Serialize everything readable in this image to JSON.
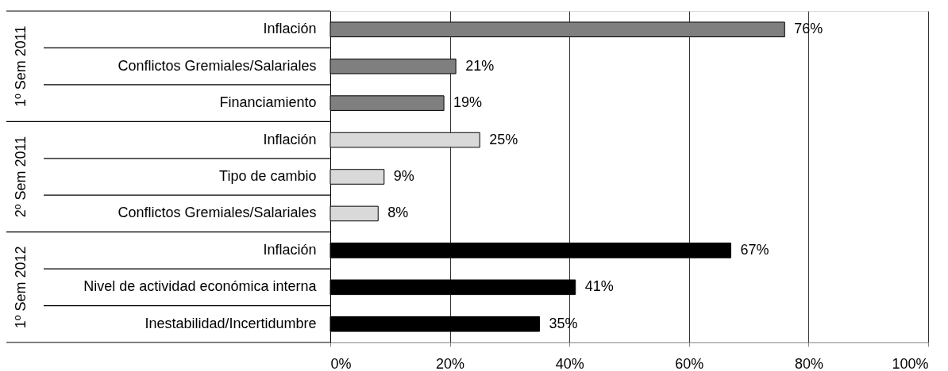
{
  "chart_data": {
    "type": "bar",
    "orientation": "horizontal",
    "categories": [
      "Inflación",
      "Conflictos Gremiales/Salariales",
      "Financiamiento",
      "Inflación",
      "Tipo de cambio",
      "Conflictos Gremiales/Salariales",
      "Inflación",
      "Nivel de actividad económica interna",
      "Inestabilidad/Incertidumbre"
    ],
    "series": [
      {
        "color": "#7f7f7f",
        "values": [
          76,
          21,
          19,
          null,
          null,
          null,
          null,
          null,
          null
        ],
        "value_labels": [
          "76%",
          "21%",
          "19%",
          null,
          null,
          null,
          null,
          null,
          null
        ]
      },
      {
        "color": "#d9d9d9",
        "values": [
          null,
          null,
          null,
          25,
          9,
          8,
          null,
          null,
          null
        ],
        "value_labels": [
          null,
          null,
          null,
          "25%",
          "9%",
          "8%",
          null,
          null,
          null
        ]
      },
      {
        "color": "#000000",
        "values": [
          null,
          null,
          null,
          null,
          null,
          null,
          67,
          41,
          35
        ],
        "value_labels": [
          null,
          null,
          null,
          null,
          null,
          null,
          "67%",
          "41%",
          "35%"
        ]
      }
    ],
    "annotations": [
      "1º Sem 2011",
      "2º Sem 2011",
      "1º Sem 2012"
    ],
    "xlim": [
      0,
      100
    ],
    "xticks": [
      {
        "value": 0,
        "label": "0%"
      },
      {
        "value": 20,
        "label": "20%"
      },
      {
        "value": 40,
        "label": "40%"
      },
      {
        "value": 60,
        "label": "60%"
      },
      {
        "value": 80,
        "label": "80%"
      },
      {
        "value": 100,
        "label": "100%"
      }
    ],
    "grid": "x"
  }
}
